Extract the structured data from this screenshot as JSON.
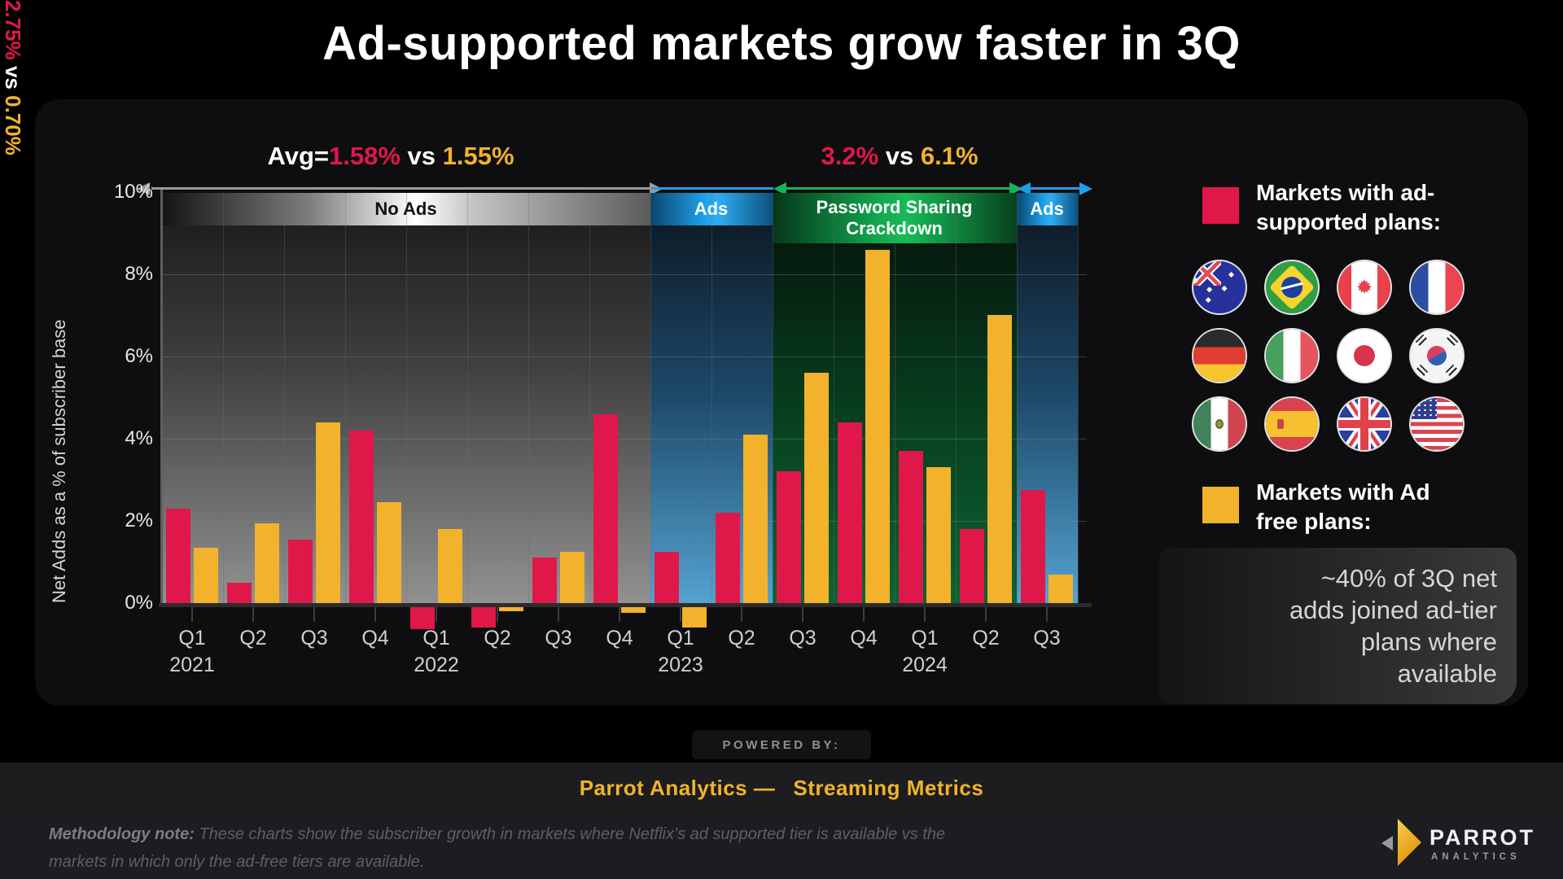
{
  "title": "Ad-supported markets grow faster in 3Q",
  "colors": {
    "ad_supported": "#e0184a",
    "ad_free": "#f2b22c",
    "arrow_gray": "#9a9a9a",
    "arrow_green": "#17b358",
    "arrow_blue": "#1d9fe8",
    "gold_accent": "#f0b429"
  },
  "annotations": {
    "avg": {
      "prefix": "Avg=",
      "ad": "1.58%",
      "vs": " vs ",
      "adfree": "1.55%"
    },
    "crackdown": {
      "ad": "3.2%",
      "vs": " vs ",
      "adfree": "6.1%"
    },
    "q3": {
      "ad": "2.75%",
      "vs": " vs ",
      "adfree": "0.70%"
    }
  },
  "chart_data": {
    "type": "bar",
    "ylabel": "Net Adds as a % of subscriber base",
    "ylim": [
      -1,
      10
    ],
    "ytick_labels": [
      "0%",
      "2%",
      "4%",
      "6%",
      "8%",
      "10%"
    ],
    "grid": true,
    "legend_position": "right",
    "categories": [
      {
        "q": "Q1",
        "year": "2021"
      },
      {
        "q": "Q2",
        "year": ""
      },
      {
        "q": "Q3",
        "year": ""
      },
      {
        "q": "Q4",
        "year": ""
      },
      {
        "q": "Q1",
        "year": "2022"
      },
      {
        "q": "Q2",
        "year": ""
      },
      {
        "q": "Q3",
        "year": ""
      },
      {
        "q": "Q4",
        "year": ""
      },
      {
        "q": "Q1",
        "year": "2023"
      },
      {
        "q": "Q2",
        "year": ""
      },
      {
        "q": "Q3",
        "year": ""
      },
      {
        "q": "Q4",
        "year": ""
      },
      {
        "q": "Q1",
        "year": "2024"
      },
      {
        "q": "Q2",
        "year": ""
      },
      {
        "q": "Q3",
        "year": ""
      }
    ],
    "series": [
      {
        "name": "Markets with ad-supported plans",
        "color": "#e0184a",
        "values": [
          2.3,
          0.5,
          1.55,
          4.2,
          -0.6,
          -0.55,
          1.1,
          4.6,
          1.25,
          2.2,
          3.2,
          4.4,
          3.7,
          1.8,
          2.75
        ]
      },
      {
        "name": "Markets with Ad free plans",
        "color": "#f2b22c",
        "values": [
          1.35,
          1.95,
          4.4,
          2.45,
          1.8,
          -0.15,
          1.25,
          -0.2,
          -0.55,
          4.1,
          5.6,
          8.6,
          3.3,
          7.0,
          0.7
        ]
      }
    ],
    "zones": [
      {
        "label": "No Ads",
        "from": 0,
        "to": 7,
        "theme": "gray"
      },
      {
        "label": "Ads",
        "from": 8,
        "to": 9,
        "theme": "blue"
      },
      {
        "label": "Password Sharing\nCrackdown",
        "from": 10,
        "to": 13,
        "theme": "green"
      },
      {
        "label": "Ads",
        "from": 14,
        "to": 14,
        "theme": "blue"
      }
    ]
  },
  "legend": {
    "ad_supported_label": "Markets with ad-\nsupported plans:",
    "ad_free_label": "Markets with Ad\nfree plans:",
    "flags": [
      "Australia",
      "Brazil",
      "Canada",
      "France",
      "Germany",
      "Italy",
      "Japan",
      "South Korea",
      "Mexico",
      "Spain",
      "United Kingdom",
      "United States"
    ]
  },
  "note": "~40% of 3Q net\nadds joined ad-tier\nplans where\navailable",
  "footer": {
    "powered_by": "POWERED BY:",
    "brand": "Parrot Analytics —",
    "product": "Streaming Metrics",
    "methodology_label": "Methodology note:",
    "methodology_text": " These charts show the subscriber growth in markets where Netflix’s ad supported tier is available vs the markets in which only the ad-free tiers are available.",
    "logo_text": "PARROT",
    "logo_sub": "ANALYTICS"
  }
}
